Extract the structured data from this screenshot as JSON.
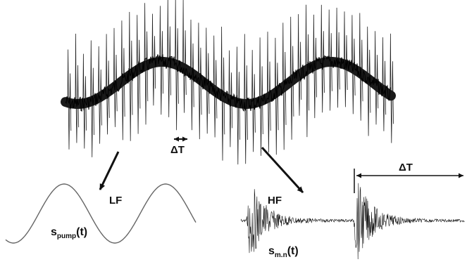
{
  "labels": {
    "delta_t_top": "ΔT",
    "lf": "LF",
    "hf": "HF",
    "delta_t_right": "ΔT",
    "s_pump_main": "s",
    "s_pump_sub": "pump",
    "s_pump_tail": "(t)",
    "s_mn_main": "s",
    "s_mn_sub": "m.n",
    "s_mn_tail": "(t)"
  },
  "colors": {
    "ink": "#111111",
    "waveform": "#1a1a1a",
    "sine": "#666666"
  }
}
